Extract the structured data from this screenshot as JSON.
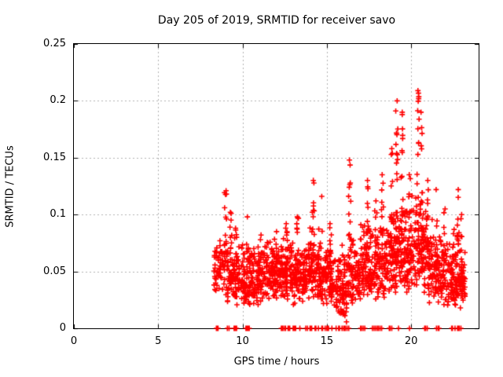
{
  "chart_data": {
    "type": "scatter",
    "title": "Day 205 of 2019, SRMTID for receiver savo",
    "xlabel": "GPS time / hours",
    "ylabel": "SRMTID / TECUs",
    "xlim": [
      0,
      24
    ],
    "ylim": [
      0,
      0.25
    ],
    "x_ticks": [
      {
        "label": "0",
        "value": 0
      },
      {
        "label": "5",
        "value": 5
      },
      {
        "label": "10",
        "value": 10
      },
      {
        "label": "15",
        "value": 15
      },
      {
        "label": "20",
        "value": 20
      }
    ],
    "y_ticks": [
      {
        "label": "0",
        "value": 0
      },
      {
        "label": "0.05",
        "value": 0.05
      },
      {
        "label": "0.1",
        "value": 0.1
      },
      {
        "label": "0.15",
        "value": 0.15
      },
      {
        "label": "0.2",
        "value": 0.2
      },
      {
        "label": "0.25",
        "value": 0.25
      }
    ],
    "grid": {
      "show": true,
      "style": "dotted",
      "color": "#b0b0b0",
      "at_x": [
        5,
        10,
        15,
        20
      ],
      "at_y": [
        0.05,
        0.1,
        0.15,
        0.2
      ]
    },
    "marker": {
      "shape": "plus",
      "color": "#ff0000",
      "size": 7
    },
    "data_x_range": [
      8.3,
      23.2
    ],
    "y_max_observed": 0.209,
    "point_distribution": {
      "bands": [
        {
          "x0": 8.3,
          "x1": 9.0,
          "n": 55,
          "y0": 0.03,
          "y1": 0.085
        },
        {
          "x0": 9.0,
          "x1": 9.8,
          "n": 90,
          "y0": 0.02,
          "y1": 0.08
        },
        {
          "x0": 9.8,
          "x1": 10.6,
          "n": 85,
          "y0": 0.02,
          "y1": 0.075
        },
        {
          "x0": 10.6,
          "x1": 11.4,
          "n": 90,
          "y0": 0.02,
          "y1": 0.08
        },
        {
          "x0": 11.4,
          "x1": 12.2,
          "n": 95,
          "y0": 0.025,
          "y1": 0.08
        },
        {
          "x0": 12.2,
          "x1": 13.0,
          "n": 100,
          "y0": 0.025,
          "y1": 0.085
        },
        {
          "x0": 13.0,
          "x1": 13.8,
          "n": 100,
          "y0": 0.02,
          "y1": 0.08
        },
        {
          "x0": 13.8,
          "x1": 14.6,
          "n": 100,
          "y0": 0.025,
          "y1": 0.09
        },
        {
          "x0": 14.6,
          "x1": 15.4,
          "n": 95,
          "y0": 0.02,
          "y1": 0.085
        },
        {
          "x0": 15.4,
          "x1": 16.2,
          "n": 80,
          "y0": 0.01,
          "y1": 0.075
        },
        {
          "x0": 15.85,
          "x1": 16.2,
          "n": 14,
          "y0": 0.003,
          "y1": 0.04
        },
        {
          "x0": 16.2,
          "x1": 17.0,
          "n": 85,
          "y0": 0.02,
          "y1": 0.09
        },
        {
          "x0": 17.0,
          "x1": 17.8,
          "n": 95,
          "y0": 0.025,
          "y1": 0.095
        },
        {
          "x0": 17.8,
          "x1": 18.6,
          "n": 95,
          "y0": 0.025,
          "y1": 0.1
        },
        {
          "x0": 18.6,
          "x1": 19.4,
          "n": 100,
          "y0": 0.03,
          "y1": 0.11
        },
        {
          "x0": 19.4,
          "x1": 20.2,
          "n": 100,
          "y0": 0.03,
          "y1": 0.12
        },
        {
          "x0": 20.2,
          "x1": 21.0,
          "n": 100,
          "y0": 0.03,
          "y1": 0.13
        },
        {
          "x0": 21.0,
          "x1": 21.8,
          "n": 95,
          "y0": 0.02,
          "y1": 0.1
        },
        {
          "x0": 21.8,
          "x1": 22.6,
          "n": 95,
          "y0": 0.02,
          "y1": 0.09
        },
        {
          "x0": 22.6,
          "x1": 23.2,
          "n": 90,
          "y0": 0.015,
          "y1": 0.085
        }
      ],
      "spikes": [
        {
          "x": 9.0,
          "ymax": 0.121,
          "n": 14
        },
        {
          "x": 9.3,
          "ymax": 0.102,
          "n": 10
        },
        {
          "x": 9.6,
          "ymax": 0.088,
          "n": 8
        },
        {
          "x": 10.3,
          "ymax": 0.098,
          "n": 7
        },
        {
          "x": 11.1,
          "ymax": 0.082,
          "n": 6
        },
        {
          "x": 12.0,
          "ymax": 0.085,
          "n": 6
        },
        {
          "x": 12.6,
          "ymax": 0.092,
          "n": 10
        },
        {
          "x": 13.25,
          "ymax": 0.098,
          "n": 8
        },
        {
          "x": 14.2,
          "ymax": 0.13,
          "n": 10
        },
        {
          "x": 14.7,
          "ymax": 0.116,
          "n": 6
        },
        {
          "x": 15.2,
          "ymax": 0.092,
          "n": 8
        },
        {
          "x": 16.35,
          "ymax": 0.148,
          "n": 14
        },
        {
          "x": 17.4,
          "ymax": 0.13,
          "n": 12
        },
        {
          "x": 17.9,
          "ymax": 0.112,
          "n": 8
        },
        {
          "x": 18.3,
          "ymax": 0.135,
          "n": 10
        },
        {
          "x": 18.85,
          "ymax": 0.158,
          "n": 12
        },
        {
          "x": 19.15,
          "ymax": 0.2,
          "n": 16
        },
        {
          "x": 19.45,
          "ymax": 0.19,
          "n": 14
        },
        {
          "x": 19.9,
          "ymax": 0.135,
          "n": 8
        },
        {
          "x": 20.4,
          "ymax": 0.209,
          "n": 20
        },
        {
          "x": 20.6,
          "ymax": 0.19,
          "n": 12
        },
        {
          "x": 21.0,
          "ymax": 0.13,
          "n": 7
        },
        {
          "x": 21.5,
          "ymax": 0.122,
          "n": 6
        },
        {
          "x": 22.0,
          "ymax": 0.105,
          "n": 5
        },
        {
          "x": 22.8,
          "ymax": 0.122,
          "n": 8
        },
        {
          "x": 23.0,
          "ymax": 0.1,
          "n": 5
        }
      ],
      "zero_marks_x": [
        8.45,
        8.5,
        8.55,
        9.1,
        9.2,
        9.5,
        9.55,
        9.6,
        9.65,
        10.2,
        10.25,
        10.3,
        10.35,
        10.4,
        12.3,
        12.35,
        12.4,
        12.5,
        12.55,
        12.7,
        12.75,
        12.8,
        13.0,
        13.05,
        13.1,
        13.15,
        13.4,
        13.75,
        13.85,
        14.0,
        14.05,
        14.1,
        14.3,
        14.35,
        14.5,
        14.7,
        14.75,
        14.9,
        15.0,
        15.05,
        15.1,
        15.3,
        15.55,
        15.7,
        15.75,
        15.9,
        16.0,
        16.05,
        16.1,
        16.2,
        16.3,
        17.0,
        17.05,
        17.15,
        17.25,
        17.7,
        17.8,
        17.9,
        18.0,
        18.05,
        18.15,
        18.25,
        18.7,
        18.75,
        18.85,
        19.25,
        19.9,
        20.8,
        20.85,
        20.95,
        21.5,
        21.6,
        21.65,
        22.4,
        22.45,
        22.6,
        22.75,
        22.8,
        22.85,
        22.95
      ]
    },
    "colors": {
      "background": "#ffffff",
      "marker": "#ff0000",
      "grid": "#b0b0b0",
      "axis": "#000000",
      "text": "#000000"
    }
  }
}
